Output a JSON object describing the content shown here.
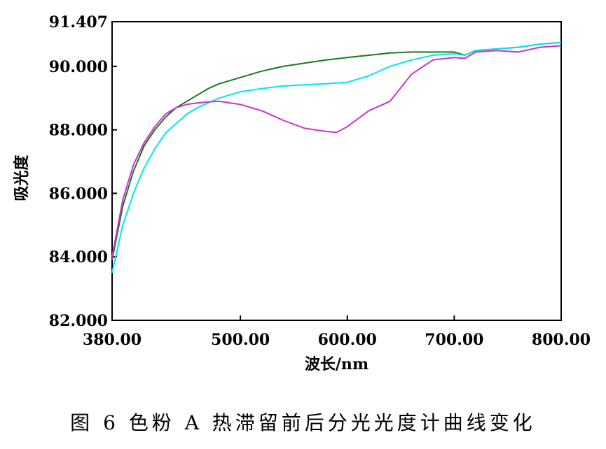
{
  "chart_data": {
    "type": "line",
    "xlabel": "波长/nm",
    "ylabel": "吸光度",
    "xlim": [
      380,
      800
    ],
    "ylim": [
      82.0,
      91.407
    ],
    "x_ticks": [
      "380.00",
      "500.00",
      "600.00",
      "700.00",
      "800.00"
    ],
    "x_tick_values": [
      380,
      500,
      600,
      700,
      800
    ],
    "y_ticks": [
      "82.000",
      "84.000",
      "86.000",
      "88.000",
      "90.000",
      "91.407"
    ],
    "y_tick_values": [
      82.0,
      84.0,
      86.0,
      88.0,
      90.0,
      91.407
    ],
    "grid": false,
    "legend": "none",
    "series": [
      {
        "color": "#1a7a1a",
        "x": [
          380,
          390,
          400,
          410,
          420,
          430,
          440,
          450,
          460,
          470,
          480,
          490,
          500,
          520,
          540,
          560,
          580,
          600,
          620,
          640,
          660,
          680,
          700,
          710,
          720,
          740,
          760,
          780,
          800
        ],
        "values": [
          83.9,
          85.6,
          86.7,
          87.5,
          88.0,
          88.4,
          88.7,
          88.9,
          89.1,
          89.3,
          89.45,
          89.55,
          89.65,
          89.85,
          90.0,
          90.1,
          90.2,
          90.28,
          90.35,
          90.42,
          90.45,
          90.45,
          90.45,
          90.35,
          90.5,
          90.55,
          90.6,
          90.7,
          90.75
        ]
      },
      {
        "color": "#00e5ee",
        "x": [
          380,
          390,
          400,
          410,
          420,
          430,
          440,
          450,
          460,
          470,
          480,
          490,
          500,
          520,
          540,
          560,
          580,
          600,
          620,
          640,
          660,
          680,
          700,
          710,
          720,
          740,
          760,
          780,
          800
        ],
        "values": [
          83.5,
          85.0,
          86.0,
          86.8,
          87.4,
          87.9,
          88.2,
          88.5,
          88.7,
          88.85,
          89.0,
          89.1,
          89.2,
          89.3,
          89.38,
          89.42,
          89.45,
          89.5,
          89.7,
          90.0,
          90.2,
          90.35,
          90.4,
          90.35,
          90.5,
          90.55,
          90.6,
          90.7,
          90.75
        ]
      },
      {
        "color": "#cc33cc",
        "x": [
          380,
          390,
          400,
          410,
          420,
          430,
          440,
          450,
          460,
          470,
          480,
          490,
          500,
          520,
          540,
          560,
          580,
          590,
          600,
          620,
          640,
          660,
          680,
          700,
          710,
          720,
          740,
          760,
          780,
          800
        ],
        "values": [
          84.0,
          85.8,
          86.9,
          87.6,
          88.1,
          88.5,
          88.7,
          88.8,
          88.85,
          88.88,
          88.9,
          88.85,
          88.8,
          88.6,
          88.3,
          88.05,
          87.95,
          87.92,
          88.1,
          88.6,
          88.9,
          89.75,
          90.2,
          90.28,
          90.25,
          90.45,
          90.5,
          90.45,
          90.6,
          90.65
        ]
      }
    ]
  },
  "caption": "图 6  色粉 A 热滞留前后分光光度计曲线变化"
}
